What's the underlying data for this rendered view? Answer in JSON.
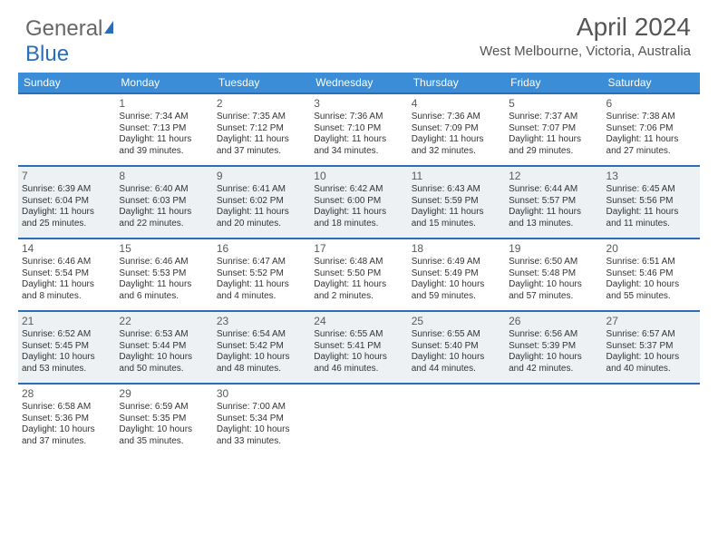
{
  "logo": {
    "part1": "General",
    "part2": "Blue"
  },
  "header": {
    "month_title": "April 2024",
    "location": "West Melbourne, Victoria, Australia"
  },
  "daynames": [
    "Sunday",
    "Monday",
    "Tuesday",
    "Wednesday",
    "Thursday",
    "Friday",
    "Saturday"
  ],
  "colors": {
    "header_bg": "#3a8dd6",
    "rule": "#2a6db8",
    "shade": "#eef1f4"
  },
  "weeks": [
    [
      {
        "num": "",
        "l1": "",
        "l2": "",
        "l3": "",
        "l4": ""
      },
      {
        "num": "1",
        "l1": "Sunrise: 7:34 AM",
        "l2": "Sunset: 7:13 PM",
        "l3": "Daylight: 11 hours",
        "l4": "and 39 minutes."
      },
      {
        "num": "2",
        "l1": "Sunrise: 7:35 AM",
        "l2": "Sunset: 7:12 PM",
        "l3": "Daylight: 11 hours",
        "l4": "and 37 minutes."
      },
      {
        "num": "3",
        "l1": "Sunrise: 7:36 AM",
        "l2": "Sunset: 7:10 PM",
        "l3": "Daylight: 11 hours",
        "l4": "and 34 minutes."
      },
      {
        "num": "4",
        "l1": "Sunrise: 7:36 AM",
        "l2": "Sunset: 7:09 PM",
        "l3": "Daylight: 11 hours",
        "l4": "and 32 minutes."
      },
      {
        "num": "5",
        "l1": "Sunrise: 7:37 AM",
        "l2": "Sunset: 7:07 PM",
        "l3": "Daylight: 11 hours",
        "l4": "and 29 minutes."
      },
      {
        "num": "6",
        "l1": "Sunrise: 7:38 AM",
        "l2": "Sunset: 7:06 PM",
        "l3": "Daylight: 11 hours",
        "l4": "and 27 minutes."
      }
    ],
    [
      {
        "num": "7",
        "l1": "Sunrise: 6:39 AM",
        "l2": "Sunset: 6:04 PM",
        "l3": "Daylight: 11 hours",
        "l4": "and 25 minutes."
      },
      {
        "num": "8",
        "l1": "Sunrise: 6:40 AM",
        "l2": "Sunset: 6:03 PM",
        "l3": "Daylight: 11 hours",
        "l4": "and 22 minutes."
      },
      {
        "num": "9",
        "l1": "Sunrise: 6:41 AM",
        "l2": "Sunset: 6:02 PM",
        "l3": "Daylight: 11 hours",
        "l4": "and 20 minutes."
      },
      {
        "num": "10",
        "l1": "Sunrise: 6:42 AM",
        "l2": "Sunset: 6:00 PM",
        "l3": "Daylight: 11 hours",
        "l4": "and 18 minutes."
      },
      {
        "num": "11",
        "l1": "Sunrise: 6:43 AM",
        "l2": "Sunset: 5:59 PM",
        "l3": "Daylight: 11 hours",
        "l4": "and 15 minutes."
      },
      {
        "num": "12",
        "l1": "Sunrise: 6:44 AM",
        "l2": "Sunset: 5:57 PM",
        "l3": "Daylight: 11 hours",
        "l4": "and 13 minutes."
      },
      {
        "num": "13",
        "l1": "Sunrise: 6:45 AM",
        "l2": "Sunset: 5:56 PM",
        "l3": "Daylight: 11 hours",
        "l4": "and 11 minutes."
      }
    ],
    [
      {
        "num": "14",
        "l1": "Sunrise: 6:46 AM",
        "l2": "Sunset: 5:54 PM",
        "l3": "Daylight: 11 hours",
        "l4": "and 8 minutes."
      },
      {
        "num": "15",
        "l1": "Sunrise: 6:46 AM",
        "l2": "Sunset: 5:53 PM",
        "l3": "Daylight: 11 hours",
        "l4": "and 6 minutes."
      },
      {
        "num": "16",
        "l1": "Sunrise: 6:47 AM",
        "l2": "Sunset: 5:52 PM",
        "l3": "Daylight: 11 hours",
        "l4": "and 4 minutes."
      },
      {
        "num": "17",
        "l1": "Sunrise: 6:48 AM",
        "l2": "Sunset: 5:50 PM",
        "l3": "Daylight: 11 hours",
        "l4": "and 2 minutes."
      },
      {
        "num": "18",
        "l1": "Sunrise: 6:49 AM",
        "l2": "Sunset: 5:49 PM",
        "l3": "Daylight: 10 hours",
        "l4": "and 59 minutes."
      },
      {
        "num": "19",
        "l1": "Sunrise: 6:50 AM",
        "l2": "Sunset: 5:48 PM",
        "l3": "Daylight: 10 hours",
        "l4": "and 57 minutes."
      },
      {
        "num": "20",
        "l1": "Sunrise: 6:51 AM",
        "l2": "Sunset: 5:46 PM",
        "l3": "Daylight: 10 hours",
        "l4": "and 55 minutes."
      }
    ],
    [
      {
        "num": "21",
        "l1": "Sunrise: 6:52 AM",
        "l2": "Sunset: 5:45 PM",
        "l3": "Daylight: 10 hours",
        "l4": "and 53 minutes."
      },
      {
        "num": "22",
        "l1": "Sunrise: 6:53 AM",
        "l2": "Sunset: 5:44 PM",
        "l3": "Daylight: 10 hours",
        "l4": "and 50 minutes."
      },
      {
        "num": "23",
        "l1": "Sunrise: 6:54 AM",
        "l2": "Sunset: 5:42 PM",
        "l3": "Daylight: 10 hours",
        "l4": "and 48 minutes."
      },
      {
        "num": "24",
        "l1": "Sunrise: 6:55 AM",
        "l2": "Sunset: 5:41 PM",
        "l3": "Daylight: 10 hours",
        "l4": "and 46 minutes."
      },
      {
        "num": "25",
        "l1": "Sunrise: 6:55 AM",
        "l2": "Sunset: 5:40 PM",
        "l3": "Daylight: 10 hours",
        "l4": "and 44 minutes."
      },
      {
        "num": "26",
        "l1": "Sunrise: 6:56 AM",
        "l2": "Sunset: 5:39 PM",
        "l3": "Daylight: 10 hours",
        "l4": "and 42 minutes."
      },
      {
        "num": "27",
        "l1": "Sunrise: 6:57 AM",
        "l2": "Sunset: 5:37 PM",
        "l3": "Daylight: 10 hours",
        "l4": "and 40 minutes."
      }
    ],
    [
      {
        "num": "28",
        "l1": "Sunrise: 6:58 AM",
        "l2": "Sunset: 5:36 PM",
        "l3": "Daylight: 10 hours",
        "l4": "and 37 minutes."
      },
      {
        "num": "29",
        "l1": "Sunrise: 6:59 AM",
        "l2": "Sunset: 5:35 PM",
        "l3": "Daylight: 10 hours",
        "l4": "and 35 minutes."
      },
      {
        "num": "30",
        "l1": "Sunrise: 7:00 AM",
        "l2": "Sunset: 5:34 PM",
        "l3": "Daylight: 10 hours",
        "l4": "and 33 minutes."
      },
      {
        "num": "",
        "l1": "",
        "l2": "",
        "l3": "",
        "l4": ""
      },
      {
        "num": "",
        "l1": "",
        "l2": "",
        "l3": "",
        "l4": ""
      },
      {
        "num": "",
        "l1": "",
        "l2": "",
        "l3": "",
        "l4": ""
      },
      {
        "num": "",
        "l1": "",
        "l2": "",
        "l3": "",
        "l4": ""
      }
    ]
  ]
}
